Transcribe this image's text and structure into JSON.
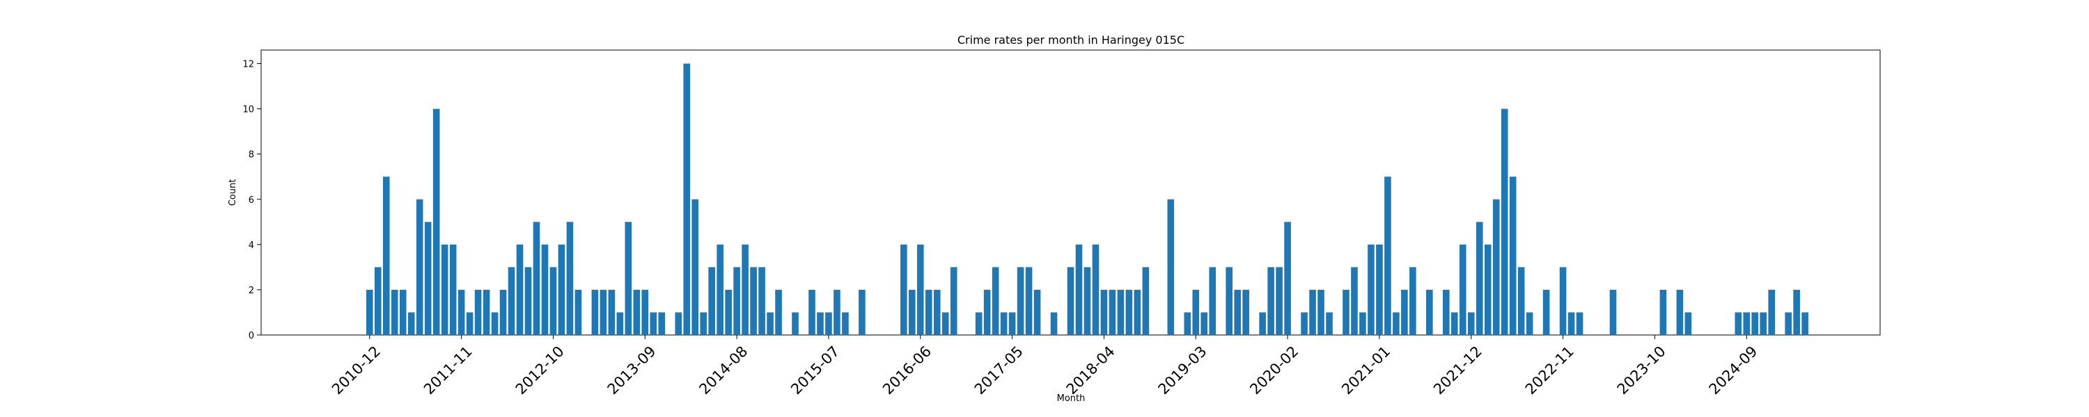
{
  "chart_data": {
    "type": "bar",
    "title": "Crime rates per month in Haringey 015C",
    "xlabel": "Month",
    "ylabel": "Count",
    "ylim": [
      0,
      12.6
    ],
    "yticks": [
      0,
      2,
      4,
      6,
      8,
      10,
      12
    ],
    "x_start": "2010-12",
    "x_end": "2024-12",
    "xtick_labels": [
      "2010-12",
      "2011-11",
      "2012-10",
      "2013-09",
      "2014-08",
      "2015-07",
      "2016-06",
      "2017-05",
      "2018-04",
      "2019-03",
      "2020-02",
      "2021-01",
      "2021-12",
      "2022-11",
      "2023-10",
      "2024-09"
    ],
    "bar_color": "#1f77b4",
    "grid": false,
    "values": [
      2,
      3,
      7,
      2,
      2,
      1,
      6,
      5,
      10,
      4,
      4,
      2,
      1,
      2,
      2,
      1,
      2,
      3,
      4,
      3,
      5,
      4,
      3,
      4,
      5,
      2,
      0,
      2,
      2,
      2,
      1,
      5,
      2,
      2,
      1,
      1,
      0,
      1,
      12,
      6,
      1,
      3,
      4,
      2,
      3,
      4,
      3,
      3,
      1,
      2,
      0,
      1,
      0,
      2,
      1,
      1,
      2,
      1,
      0,
      2,
      0,
      0,
      0,
      0,
      4,
      2,
      4,
      2,
      2,
      1,
      3,
      0,
      0,
      1,
      2,
      3,
      1,
      1,
      3,
      3,
      2,
      0,
      1,
      0,
      3,
      4,
      3,
      4,
      2,
      2,
      2,
      2,
      2,
      3,
      0,
      0,
      6,
      0,
      1,
      2,
      1,
      3,
      0,
      3,
      2,
      2,
      0,
      1,
      3,
      3,
      5,
      0,
      1,
      2,
      2,
      1,
      0,
      2,
      3,
      1,
      4,
      4,
      7,
      1,
      2,
      3,
      0,
      2,
      0,
      2,
      1,
      4,
      1,
      5,
      4,
      6,
      10,
      7,
      3,
      1,
      0,
      2,
      0,
      3,
      1,
      1,
      0,
      0,
      0,
      2,
      0,
      0,
      0,
      0,
      0,
      2,
      0,
      2,
      1,
      0,
      0,
      0,
      0,
      0,
      1,
      1,
      1,
      1,
      2,
      0,
      1,
      2,
      1
    ]
  }
}
